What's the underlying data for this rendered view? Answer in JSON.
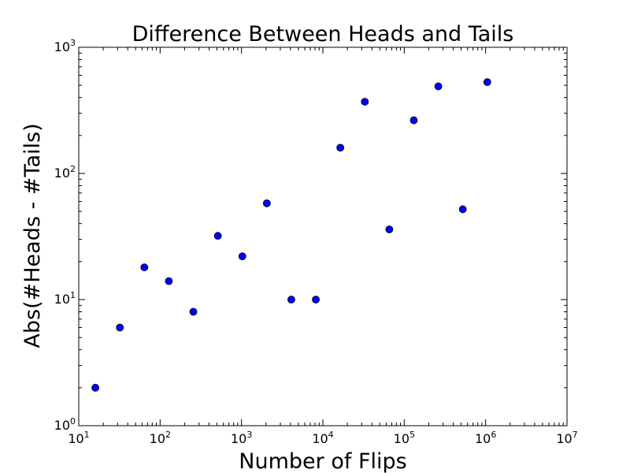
{
  "chart_data": {
    "type": "scatter",
    "title": "Difference Between Heads and Tails",
    "xlabel": "Number of Flips",
    "ylabel": "Abs(#Heads - #Tails)",
    "xscale": "log",
    "yscale": "log",
    "xlim": [
      10,
      10000000
    ],
    "ylim": [
      1,
      1000
    ],
    "x_ticks": [
      {
        "value": 10,
        "base": "10",
        "exp": "1"
      },
      {
        "value": 100,
        "base": "10",
        "exp": "2"
      },
      {
        "value": 1000,
        "base": "10",
        "exp": "3"
      },
      {
        "value": 10000,
        "base": "10",
        "exp": "4"
      },
      {
        "value": 100000,
        "base": "10",
        "exp": "5"
      },
      {
        "value": 1000000,
        "base": "10",
        "exp": "6"
      },
      {
        "value": 10000000,
        "base": "10",
        "exp": "7"
      }
    ],
    "y_ticks": [
      {
        "value": 1,
        "base": "10",
        "exp": "0"
      },
      {
        "value": 10,
        "base": "10",
        "exp": "1"
      },
      {
        "value": 100,
        "base": "10",
        "exp": "2"
      },
      {
        "value": 1000,
        "base": "10",
        "exp": "3"
      }
    ],
    "grid": false,
    "marker_color": "#0000ff",
    "marker_edge": "#000000",
    "points": [
      {
        "x": 16,
        "y": 2
      },
      {
        "x": 32,
        "y": 6
      },
      {
        "x": 64,
        "y": 18
      },
      {
        "x": 128,
        "y": 14
      },
      {
        "x": 256,
        "y": 8
      },
      {
        "x": 512,
        "y": 32
      },
      {
        "x": 1024,
        "y": 22
      },
      {
        "x": 2048,
        "y": 58
      },
      {
        "x": 4096,
        "y": 10
      },
      {
        "x": 8192,
        "y": 10
      },
      {
        "x": 16384,
        "y": 160
      },
      {
        "x": 32768,
        "y": 370
      },
      {
        "x": 65536,
        "y": 36
      },
      {
        "x": 131072,
        "y": 264
      },
      {
        "x": 262144,
        "y": 490
      },
      {
        "x": 524288,
        "y": 52
      },
      {
        "x": 1048576,
        "y": 530
      }
    ]
  }
}
